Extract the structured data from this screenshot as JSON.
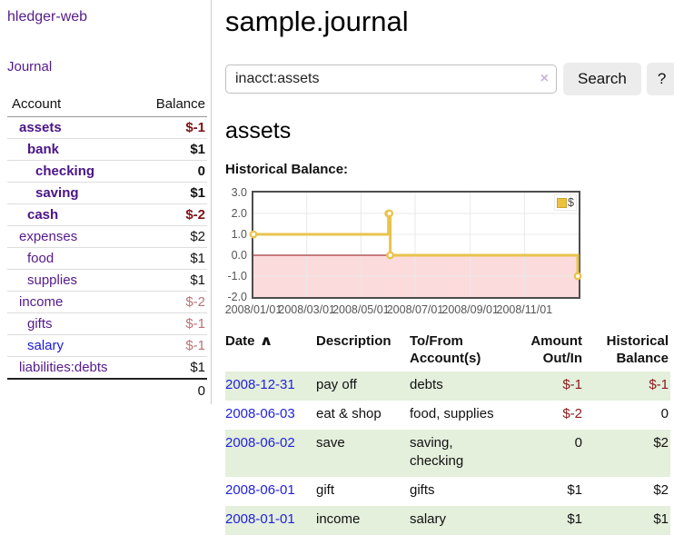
{
  "brand": "hledger-web",
  "nav": {
    "journal": "Journal"
  },
  "sidebar": {
    "header": {
      "account": "Account",
      "balance": "Balance"
    },
    "accounts": [
      {
        "name": "assets",
        "level": 1,
        "in_focus": true,
        "balance": "$-1"
      },
      {
        "name": "bank",
        "level": 2,
        "in_focus": true,
        "balance": "$1"
      },
      {
        "name": "checking",
        "level": 3,
        "in_focus": true,
        "balance": "0"
      },
      {
        "name": "saving",
        "level": 3,
        "in_focus": true,
        "balance": "$1"
      },
      {
        "name": "cash",
        "level": 2,
        "in_focus": true,
        "balance": "$-2"
      },
      {
        "name": "expenses",
        "level": 1,
        "in_focus": false,
        "balance": "$2"
      },
      {
        "name": "food",
        "level": 2,
        "in_focus": false,
        "balance": "$1"
      },
      {
        "name": "supplies",
        "level": 2,
        "in_focus": false,
        "balance": "$1"
      },
      {
        "name": "income",
        "level": 1,
        "in_focus": false,
        "balance": "$-2"
      },
      {
        "name": "gifts",
        "level": 2,
        "in_focus": false,
        "balance": "$-1"
      },
      {
        "name": "salary",
        "level": 2,
        "in_focus": false,
        "unvisited": true,
        "balance": "$-1"
      },
      {
        "name": "liabilities:debts",
        "level": 1,
        "in_focus": false,
        "balance": "$1"
      }
    ],
    "total": "0"
  },
  "main": {
    "title": "sample.journal",
    "search": {
      "value": "inacct:assets",
      "clear_icon": "×",
      "search_button": "Search",
      "help_button": "?"
    },
    "account_heading": "assets",
    "chart_heading": "Historical Balance:"
  },
  "chart_data": {
    "type": "line",
    "step": true,
    "series": [
      {
        "name": "$",
        "color": "#e9c34d",
        "points": [
          [
            "2008-01-01",
            1
          ],
          [
            "2008-06-01",
            2
          ],
          [
            "2008-06-02",
            2
          ],
          [
            "2008-06-03",
            0
          ],
          [
            "2008-12-31",
            -1
          ]
        ]
      }
    ],
    "xlim": [
      "2008-01-01",
      "2009-01-01"
    ],
    "ylim": [
      -2,
      3
    ],
    "yticks": [
      {
        "label": "3.0",
        "value": 3
      },
      {
        "label": "2.0",
        "value": 2
      },
      {
        "label": "1.0",
        "value": 1
      },
      {
        "label": "0.0",
        "value": 0
      },
      {
        "label": "-1.0",
        "value": -1
      },
      {
        "label": "-2.0",
        "value": -2
      }
    ],
    "xticks": [
      {
        "label": "2008/01/01",
        "date": "2008-01-01"
      },
      {
        "label": "2008/03/01",
        "date": "2008-03-01"
      },
      {
        "label": "2008/05/01",
        "date": "2008-05-01"
      },
      {
        "label": "2008/07/01",
        "date": "2008-07-01"
      },
      {
        "label": "2008/09/01",
        "date": "2008-09-01"
      },
      {
        "label": "2008/11/01",
        "date": "2008-11-01"
      }
    ],
    "legend": {
      "label": "$",
      "position": "top-right"
    },
    "grid": true,
    "negative_region": true,
    "colors": {
      "negative_region": "#fbdbdc",
      "zero_line": "#8f0e10",
      "gridline": "#e9e9e9",
      "border": "#4d4d4d"
    }
  },
  "register": {
    "headers": {
      "date": "Date",
      "sort_icon": "∧",
      "description": "Description",
      "account": "To/From Account(s)",
      "amount": "Amount Out/In",
      "balance": "Historical Balance"
    },
    "rows": [
      {
        "date": "2008-12-31",
        "description": "pay off",
        "account": "debts",
        "amount": "$-1",
        "balance": "$-1"
      },
      {
        "date": "2008-06-03",
        "description": "eat & shop",
        "account": "food, supplies",
        "amount": "$-2",
        "balance": "0"
      },
      {
        "date": "2008-06-02",
        "description": "save",
        "account": "saving, checking",
        "amount": "0",
        "balance": "$2"
      },
      {
        "date": "2008-06-01",
        "description": "gift",
        "account": "gifts",
        "amount": "$1",
        "balance": "$2"
      },
      {
        "date": "2008-01-01",
        "description": "income",
        "account": "salary",
        "amount": "$1",
        "balance": "$1"
      }
    ]
  }
}
